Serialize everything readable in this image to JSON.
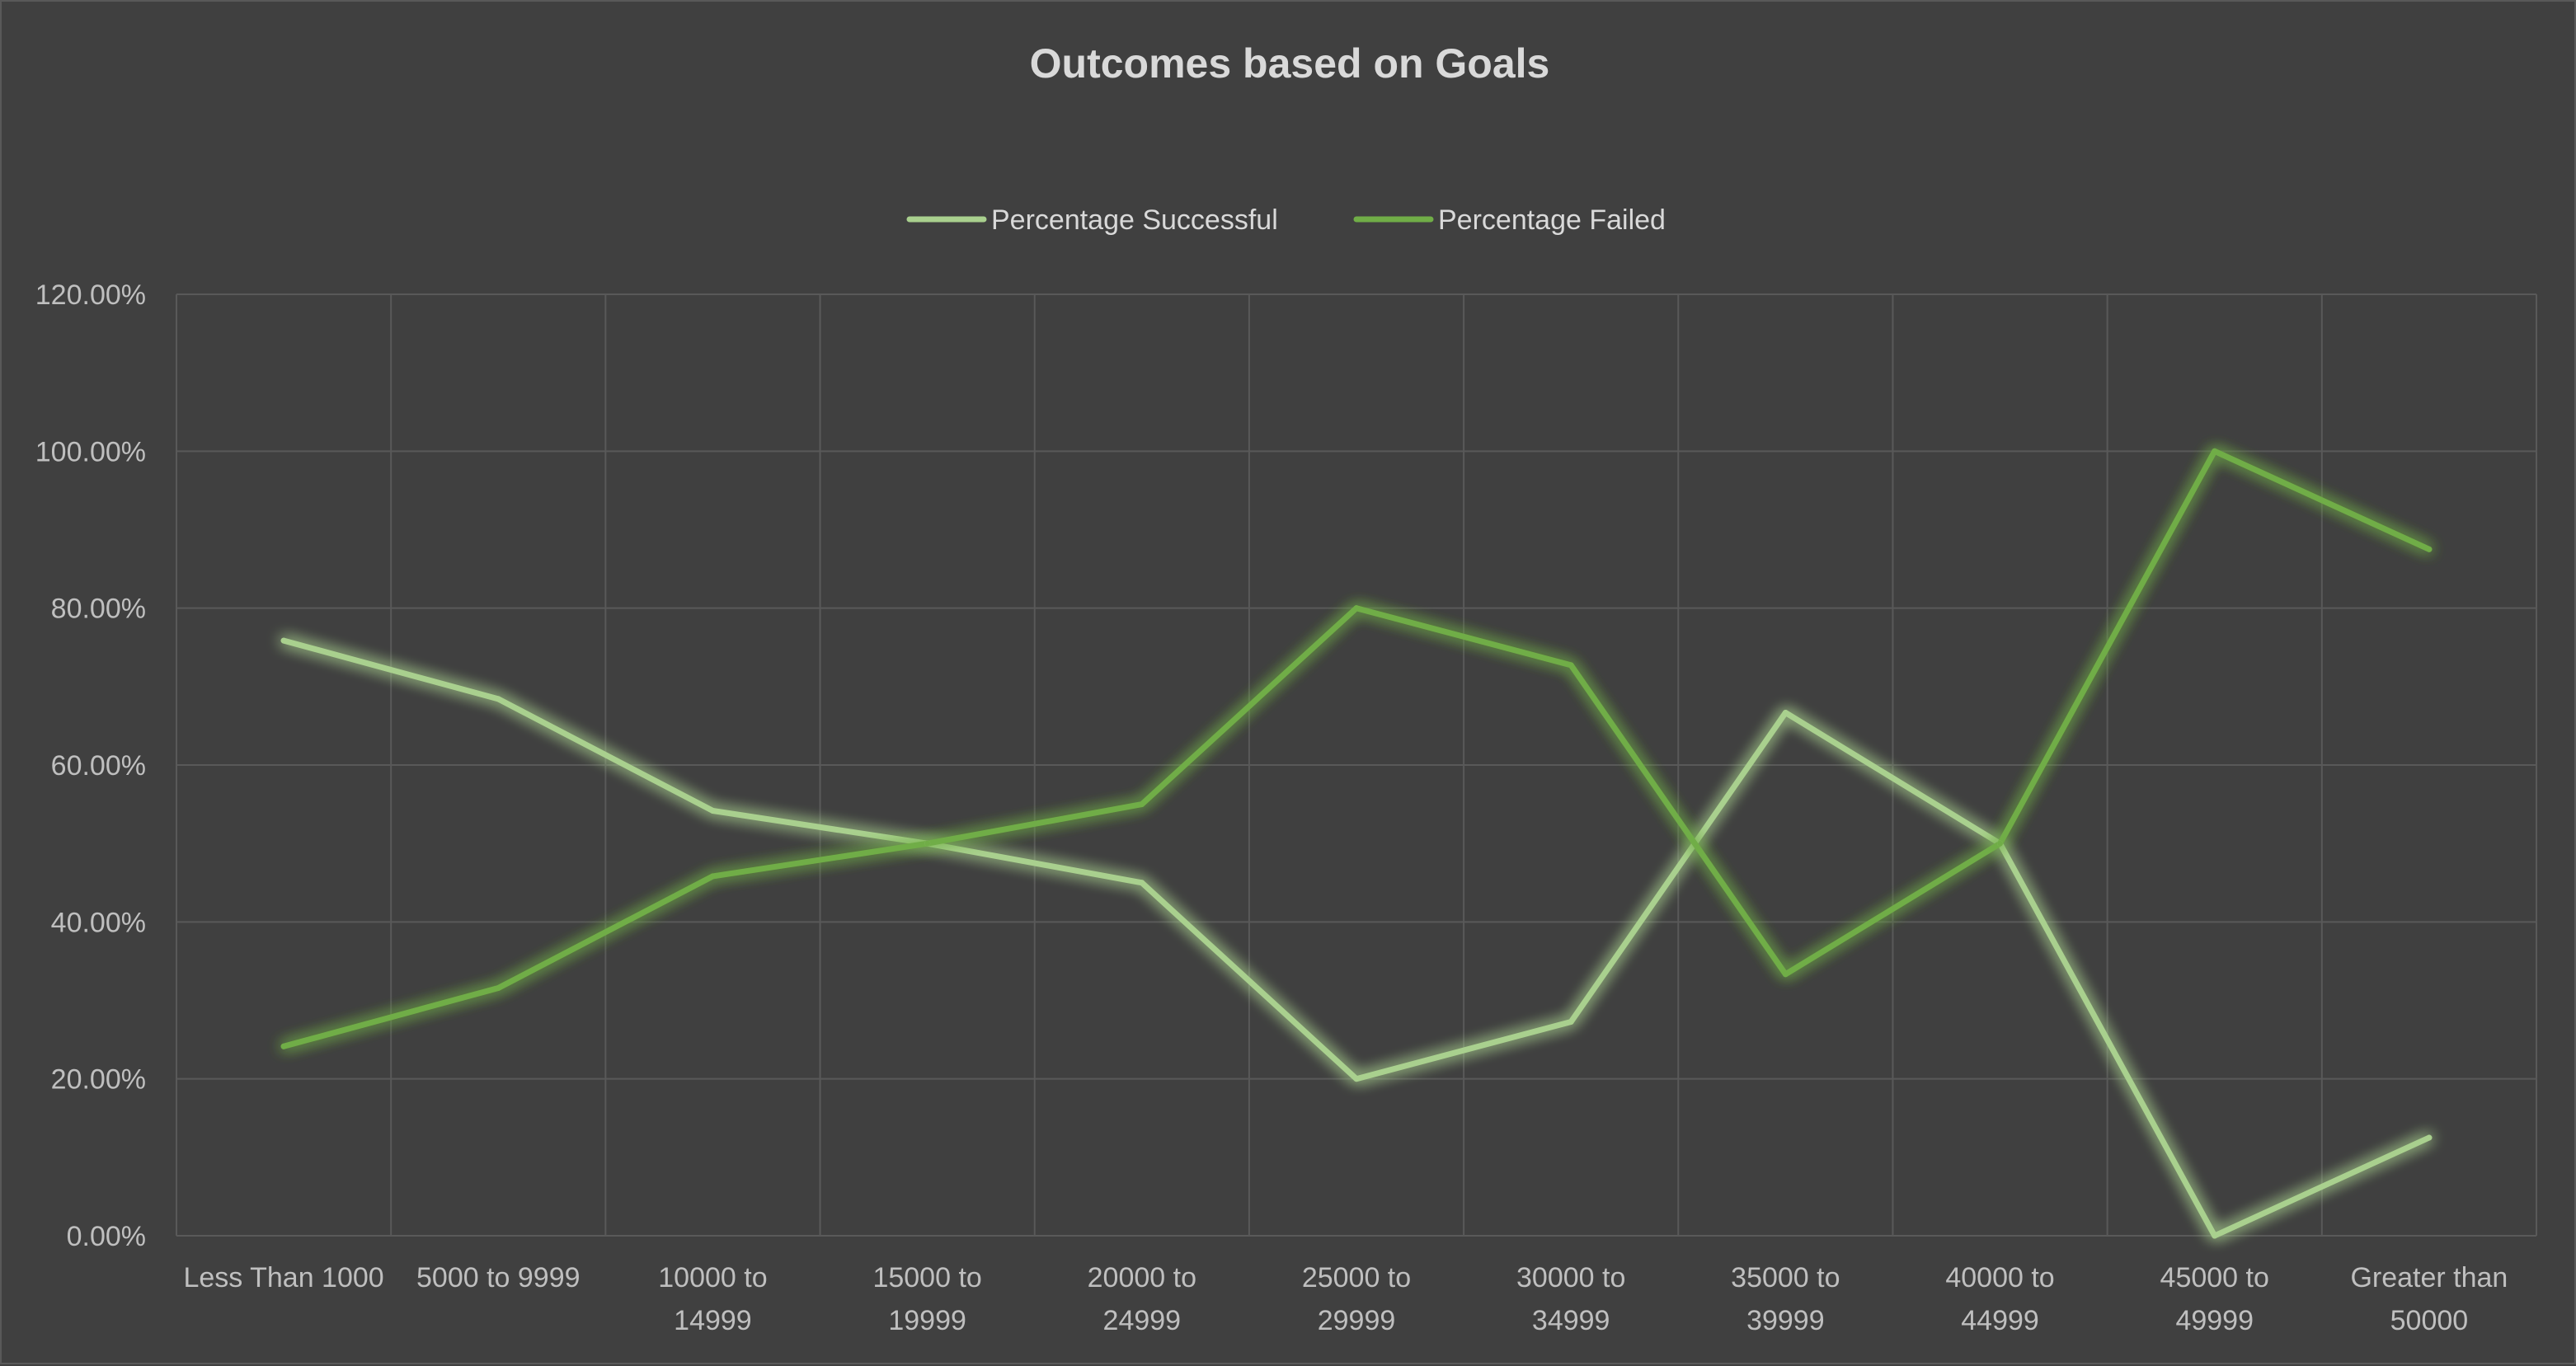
{
  "chart_data": {
    "type": "line",
    "title": "Outcomes based on Goals",
    "xlabel": "",
    "ylabel": "",
    "categories": [
      "Less Than 1000",
      "5000 to 9999",
      "10000 to 14999",
      "15000 to 19999",
      "20000 to 24999",
      "25000 to 29999",
      "30000 to 34999",
      "35000 to 39999",
      "40000 to 44999",
      "45000 to 49999",
      "Greater than 50000"
    ],
    "category_lines": [
      [
        "Less Than 1000"
      ],
      [
        "5000 to 9999"
      ],
      [
        "10000 to",
        "14999"
      ],
      [
        "15000 to",
        "19999"
      ],
      [
        "20000 to",
        "24999"
      ],
      [
        "25000 to",
        "29999"
      ],
      [
        "30000 to",
        "34999"
      ],
      [
        "35000 to",
        "39999"
      ],
      [
        "40000 to",
        "44999"
      ],
      [
        "45000 to",
        "49999"
      ],
      [
        "Greater than",
        "50000"
      ]
    ],
    "series": [
      {
        "name": "Percentage Successful",
        "color": "#a9d08e",
        "values": [
          0.7586,
          0.6842,
          0.5417,
          0.5,
          0.45,
          0.2,
          0.2727,
          0.6667,
          0.5,
          0.0,
          0.125
        ]
      },
      {
        "name": "Percentage Failed",
        "color": "#70ad47",
        "values": [
          0.2414,
          0.3158,
          0.4583,
          0.5,
          0.55,
          0.8,
          0.7273,
          0.3333,
          0.5,
          1.0,
          0.875
        ]
      }
    ],
    "ylim": [
      0,
      1.2
    ],
    "y_ticks": [
      {
        "value": 0.0,
        "label": "0.00%"
      },
      {
        "value": 0.2,
        "label": "20.00%"
      },
      {
        "value": 0.4,
        "label": "40.00%"
      },
      {
        "value": 0.6,
        "label": "60.00%"
      },
      {
        "value": 0.8,
        "label": "80.00%"
      },
      {
        "value": 1.0,
        "label": "100.00%"
      },
      {
        "value": 1.2,
        "label": "120.00%"
      }
    ],
    "grid": true,
    "legend_position": "top"
  },
  "colors": {
    "background": "#404040",
    "grid": "#595959",
    "text": "#d9d9d9"
  }
}
